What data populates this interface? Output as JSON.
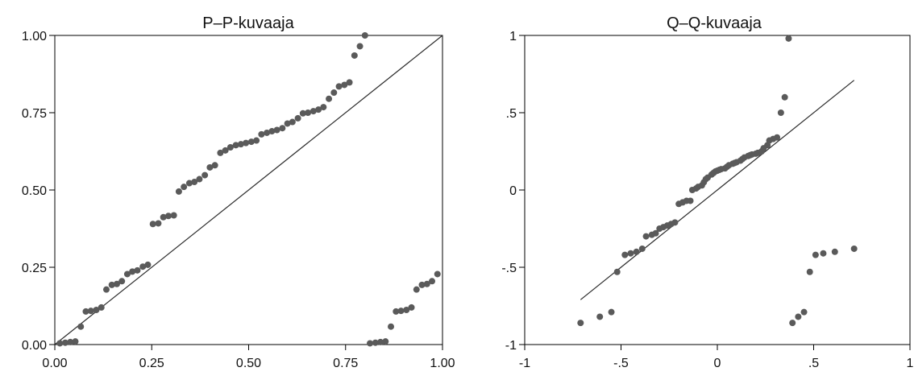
{
  "colors": {
    "point": "#5a5a5a",
    "line": "#2b2b2b",
    "frame": "#000000",
    "background": "#ffffff"
  },
  "chart_data": [
    {
      "type": "scatter",
      "title": "P–P-kuvaaja",
      "xlabel": "",
      "ylabel": "",
      "xlim": [
        0,
        1
      ],
      "ylim": [
        0,
        1
      ],
      "xticks": [
        0,
        0.25,
        0.5,
        0.75,
        1
      ],
      "xtick_labels": [
        "0.00",
        "0.25",
        "0.50",
        "0.75",
        "1.00"
      ],
      "yticks": [
        0,
        0.25,
        0.5,
        0.75,
        1
      ],
      "ytick_labels": [
        "0.00",
        "0.25",
        "0.50",
        "0.75",
        "1.00"
      ],
      "grid": false,
      "reference_line": [
        [
          0,
          0
        ],
        [
          1,
          1
        ]
      ],
      "x": [
        0.013,
        0.027,
        0.04,
        0.053,
        0.067,
        0.08,
        0.093,
        0.107,
        0.12,
        0.133,
        0.147,
        0.16,
        0.173,
        0.187,
        0.2,
        0.213,
        0.227,
        0.24,
        0.253,
        0.267,
        0.28,
        0.293,
        0.307,
        0.32,
        0.333,
        0.347,
        0.36,
        0.373,
        0.387,
        0.4,
        0.413,
        0.427,
        0.44,
        0.453,
        0.467,
        0.48,
        0.493,
        0.507,
        0.52,
        0.533,
        0.547,
        0.56,
        0.573,
        0.587,
        0.6,
        0.613,
        0.627,
        0.64,
        0.653,
        0.667,
        0.68,
        0.693,
        0.707,
        0.72,
        0.733,
        0.747,
        0.76,
        0.773,
        0.787,
        0.8,
        0.813,
        0.827,
        0.84,
        0.853,
        0.867,
        0.88,
        0.893,
        0.907,
        0.92,
        0.933,
        0.947,
        0.96,
        0.973,
        0.987
      ],
      "y": [
        0.004,
        0.006,
        0.008,
        0.01,
        0.058,
        0.107,
        0.109,
        0.112,
        0.12,
        0.178,
        0.193,
        0.196,
        0.205,
        0.228,
        0.236,
        0.24,
        0.252,
        0.258,
        0.39,
        0.392,
        0.412,
        0.416,
        0.418,
        0.495,
        0.51,
        0.522,
        0.526,
        0.535,
        0.548,
        0.573,
        0.58,
        0.62,
        0.628,
        0.638,
        0.645,
        0.648,
        0.652,
        0.656,
        0.66,
        0.68,
        0.685,
        0.69,
        0.694,
        0.7,
        0.715,
        0.72,
        0.732,
        0.748,
        0.75,
        0.755,
        0.76,
        0.768,
        0.795,
        0.815,
        0.835,
        0.84,
        0.848,
        0.935,
        0.965,
        1.0,
        0.004,
        0.006,
        0.008,
        0.01,
        0.058,
        0.107,
        0.109,
        0.112,
        0.12,
        0.178,
        0.193,
        0.196,
        0.205,
        0.228
      ]
    },
    {
      "type": "scatter",
      "title": "Q–Q-kuvaaja",
      "xlabel": "",
      "ylabel": "",
      "xlim": [
        -1.0,
        1.0
      ],
      "ylim": [
        -1.0,
        1.0
      ],
      "xticks": [
        -1,
        -0.5,
        0,
        0.5,
        1
      ],
      "xtick_labels": [
        "-1",
        "-.5",
        "0",
        ".5",
        "1"
      ],
      "yticks": [
        -1,
        -0.5,
        0,
        0.5,
        1
      ],
      "ytick_labels": [
        "-1",
        "-.5",
        "0",
        ".5",
        "1"
      ],
      "grid": false,
      "reference_line": [
        [
          -0.71,
          -0.71
        ],
        [
          0.71,
          0.71
        ]
      ],
      "x": [
        -0.71,
        -0.61,
        -0.55,
        -0.52,
        -0.48,
        -0.45,
        -0.42,
        -0.39,
        -0.37,
        -0.34,
        -0.32,
        -0.3,
        -0.28,
        -0.26,
        -0.24,
        -0.22,
        -0.2,
        -0.18,
        -0.16,
        -0.14,
        -0.13,
        -0.11,
        -0.1,
        -0.08,
        -0.07,
        -0.06,
        -0.05,
        -0.03,
        -0.02,
        -0.01,
        0.0,
        0.01,
        0.02,
        0.04,
        0.05,
        0.06,
        0.08,
        0.09,
        0.1,
        0.12,
        0.13,
        0.14,
        0.16,
        0.17,
        0.18,
        0.2,
        0.21,
        0.23,
        0.24,
        0.26,
        0.27,
        0.29,
        0.31,
        0.33,
        0.35,
        0.37,
        0.39,
        0.42,
        0.45,
        0.48,
        0.51,
        0.55,
        0.61,
        0.71
      ],
      "y": [
        -0.86,
        -0.82,
        -0.79,
        -0.53,
        -0.42,
        -0.41,
        -0.4,
        -0.38,
        -0.3,
        -0.29,
        -0.28,
        -0.25,
        -0.24,
        -0.23,
        -0.22,
        -0.21,
        -0.09,
        -0.08,
        -0.07,
        -0.07,
        0.0,
        0.01,
        0.02,
        0.03,
        0.05,
        0.07,
        0.08,
        0.1,
        0.11,
        0.12,
        0.125,
        0.13,
        0.135,
        0.14,
        0.15,
        0.16,
        0.17,
        0.175,
        0.18,
        0.19,
        0.2,
        0.21,
        0.22,
        0.225,
        0.23,
        0.235,
        0.24,
        0.25,
        0.27,
        0.29,
        0.32,
        0.33,
        0.34,
        0.5,
        0.6,
        0.98,
        -0.86,
        -0.82,
        -0.79,
        -0.53,
        -0.42,
        -0.41,
        -0.4,
        -0.38
      ]
    }
  ]
}
